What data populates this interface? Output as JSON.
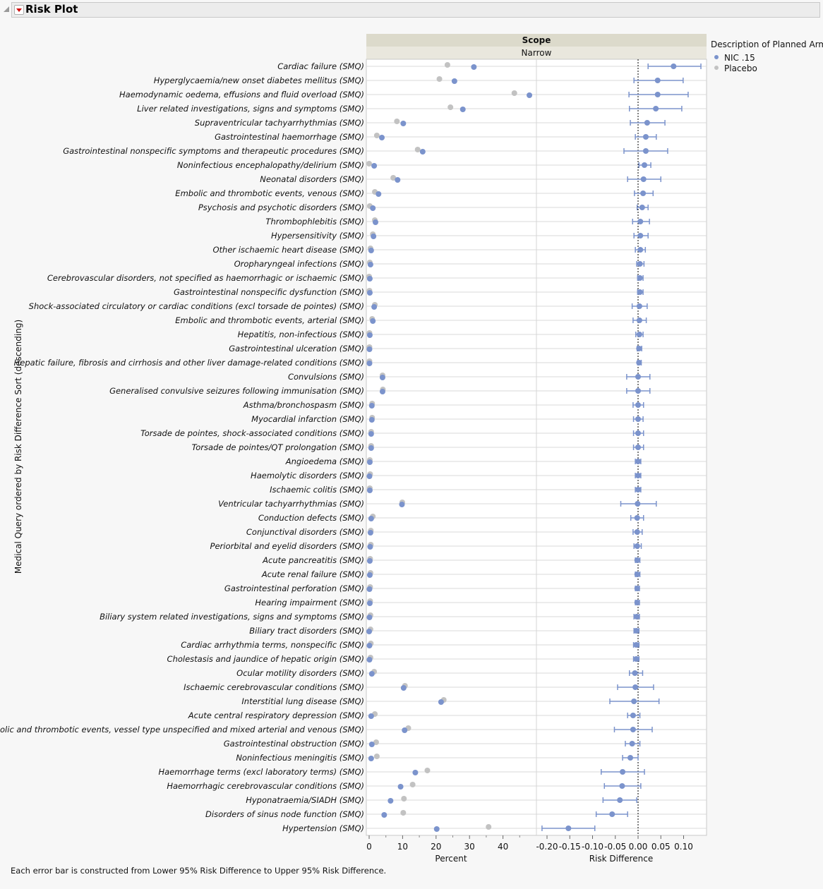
{
  "header": {
    "title": "Risk Plot"
  },
  "footer": "Each error bar is constructed from Lower 95% Risk Difference to Upper 95% Risk Difference.",
  "colors": {
    "nic": "#7b93cc",
    "placebo": "#c2c2c2"
  },
  "chart_data": {
    "type": "scatter",
    "panel_header": "Scope",
    "panel_subheader": "Narrow",
    "ylabel": "Medical Query ordered by Risk Difference Sort (descending)",
    "legend": {
      "title": "Description of Planned Arm",
      "entries": [
        "NIC .15",
        "Placebo"
      ],
      "placement": "right"
    },
    "percent_axis": {
      "label": "Percent",
      "range": [
        0,
        50
      ],
      "ticks": [
        "0",
        "10",
        "20",
        "30",
        "40"
      ],
      "tick_values": [
        0,
        10,
        20,
        30,
        40
      ]
    },
    "rd_axis": {
      "label": "Risk Difference",
      "range": [
        -0.223,
        0.15
      ],
      "ticks": [
        "-0.20",
        "-0.15",
        "-0.10",
        "-0.05",
        "0.00",
        "0.05",
        "0.10"
      ],
      "tick_values": [
        -0.2,
        -0.15,
        -0.1,
        -0.05,
        0,
        0.05,
        0.1
      ],
      "reference_line": 0
    },
    "rows": [
      {
        "label": "Cardiac failure (SMQ)",
        "nic": 31.3,
        "placebo": 23.4,
        "rd": 0.078,
        "lo": 0.022,
        "hi": 0.138
      },
      {
        "label": "Hyperglycaemia/new onset diabetes mellitus (SMQ)",
        "nic": 25.5,
        "placebo": 21.0,
        "rd": 0.043,
        "lo": -0.009,
        "hi": 0.099
      },
      {
        "label": "Haemodynamic oedema, effusions and fluid overload (SMQ)",
        "nic": 47.9,
        "placebo": 43.4,
        "rd": 0.043,
        "lo": -0.02,
        "hi": 0.11
      },
      {
        "label": "Liver related investigations, signs and symptoms (SMQ)",
        "nic": 28.0,
        "placebo": 24.3,
        "rd": 0.039,
        "lo": -0.019,
        "hi": 0.096
      },
      {
        "label": "Supraventricular tachyarrhythmias (SMQ)",
        "nic": 10.2,
        "placebo": 8.3,
        "rd": 0.02,
        "lo": -0.017,
        "hi": 0.059
      },
      {
        "label": "Gastrointestinal haemorrhage (SMQ)",
        "nic": 3.8,
        "placebo": 2.3,
        "rd": 0.017,
        "lo": -0.006,
        "hi": 0.04
      },
      {
        "label": "Gastrointestinal nonspecific symptoms and therapeutic procedures (SMQ)",
        "nic": 16.0,
        "placebo": 14.5,
        "rd": 0.017,
        "lo": -0.031,
        "hi": 0.065
      },
      {
        "label": "Noninfectious encephalopathy/delirium (SMQ)",
        "nic": 1.5,
        "placebo": 0.0,
        "rd": 0.014,
        "lo": 0.002,
        "hi": 0.028
      },
      {
        "label": "Neonatal disorders (SMQ)",
        "nic": 8.5,
        "placebo": 7.2,
        "rd": 0.012,
        "lo": -0.023,
        "hi": 0.05
      },
      {
        "label": "Embolic and thrombotic events, venous (SMQ)",
        "nic": 2.8,
        "placebo": 1.7,
        "rd": 0.011,
        "lo": -0.008,
        "hi": 0.033
      },
      {
        "label": "Psychosis and psychotic disorders (SMQ)",
        "nic": 1.1,
        "placebo": 0.2,
        "rd": 0.009,
        "lo": -0.002,
        "hi": 0.022
      },
      {
        "label": "Thrombophlebitis (SMQ)",
        "nic": 1.9,
        "placebo": 1.7,
        "rd": 0.005,
        "lo": -0.012,
        "hi": 0.025
      },
      {
        "label": "Hypersensitivity (SMQ)",
        "nic": 1.3,
        "placebo": 1.1,
        "rd": 0.005,
        "lo": -0.009,
        "hi": 0.022
      },
      {
        "label": "Other ischaemic heart disease (SMQ)",
        "nic": 0.6,
        "placebo": 0.4,
        "rd": 0.005,
        "lo": -0.006,
        "hi": 0.016
      },
      {
        "label": "Oropharyngeal infections (SMQ)",
        "nic": 0.4,
        "placebo": 0.2,
        "rd": 0.004,
        "lo": -0.003,
        "hi": 0.013
      },
      {
        "label": "Cerebrovascular disorders, not specified as haemorrhagic or ischaemic (SMQ)",
        "nic": 0.2,
        "placebo": 0.0,
        "rd": 0.004,
        "lo": -0.001,
        "hi": 0.011
      },
      {
        "label": "Gastrointestinal nonspecific dysfunction (SMQ)",
        "nic": 0.2,
        "placebo": 0.1,
        "rd": 0.004,
        "lo": -0.001,
        "hi": 0.011
      },
      {
        "label": "Shock-associated circulatory or cardiac conditions (excl torsade de pointes) (SMQ)",
        "nic": 1.5,
        "placebo": 1.7,
        "rd": 0.003,
        "lo": -0.013,
        "hi": 0.02
      },
      {
        "label": "Embolic and thrombotic events, arterial (SMQ)",
        "nic": 1.1,
        "placebo": 0.9,
        "rd": 0.003,
        "lo": -0.011,
        "hi": 0.018
      },
      {
        "label": "Hepatitis, non-infectious (SMQ)",
        "nic": 0.2,
        "placebo": 0.1,
        "rd": 0.003,
        "lo": -0.005,
        "hi": 0.011
      },
      {
        "label": "Gastrointestinal ulceration (SMQ)",
        "nic": 0.1,
        "placebo": 0.1,
        "rd": 0.002,
        "lo": -0.002,
        "hi": 0.008
      },
      {
        "label": "Hepatic failure, fibrosis and cirrhosis and other liver damage-related conditions (SMQ)",
        "nic": 0.1,
        "placebo": 0.1,
        "rd": 0.002,
        "lo": -0.001,
        "hi": 0.007
      },
      {
        "label": "Convulsions (SMQ)",
        "nic": 4.0,
        "placebo": 4.0,
        "rd": 0.0,
        "lo": -0.025,
        "hi": 0.026
      },
      {
        "label": "Generalised convulsive seizures following immunisation (SMQ)",
        "nic": 4.0,
        "placebo": 4.1,
        "rd": 0.0,
        "lo": -0.025,
        "hi": 0.026
      },
      {
        "label": "Asthma/bronchospasm (SMQ)",
        "nic": 0.8,
        "placebo": 0.9,
        "rd": 0.0,
        "lo": -0.011,
        "hi": 0.012
      },
      {
        "label": "Myocardial infarction (SMQ)",
        "nic": 0.8,
        "placebo": 0.9,
        "rd": 0.0,
        "lo": -0.01,
        "hi": 0.011
      },
      {
        "label": "Torsade de pointes, shock-associated conditions (SMQ)",
        "nic": 0.6,
        "placebo": 0.6,
        "rd": 0.0,
        "lo": -0.01,
        "hi": 0.012
      },
      {
        "label": "Torsade de pointes/QT prolongation (SMQ)",
        "nic": 0.6,
        "placebo": 0.6,
        "rd": 0.0,
        "lo": -0.01,
        "hi": 0.012
      },
      {
        "label": "Angioedema (SMQ)",
        "nic": 0.2,
        "placebo": 0.2,
        "rd": 0.0,
        "lo": -0.006,
        "hi": 0.006
      },
      {
        "label": "Haemolytic disorders (SMQ)",
        "nic": 0.1,
        "placebo": 0.3,
        "rd": 0.0,
        "lo": -0.006,
        "hi": 0.006
      },
      {
        "label": "Ischaemic colitis (SMQ)",
        "nic": 0.2,
        "placebo": 0.2,
        "rd": 0.0,
        "lo": -0.006,
        "hi": 0.006
      },
      {
        "label": "Ventricular tachyarrhythmias (SMQ)",
        "nic": 9.8,
        "placebo": 9.9,
        "rd": -0.001,
        "lo": -0.038,
        "hi": 0.04
      },
      {
        "label": "Conduction defects (SMQ)",
        "nic": 0.6,
        "placebo": 1.1,
        "rd": -0.002,
        "lo": -0.016,
        "hi": 0.012
      },
      {
        "label": "Conjunctival disorders (SMQ)",
        "nic": 0.4,
        "placebo": 0.5,
        "rd": -0.002,
        "lo": -0.011,
        "hi": 0.009
      },
      {
        "label": "Periorbital and eyelid disorders (SMQ)",
        "nic": 0.3,
        "placebo": 0.5,
        "rd": -0.002,
        "lo": -0.009,
        "hi": 0.007
      },
      {
        "label": "Acute pancreatitis (SMQ)",
        "nic": 0.2,
        "placebo": 0.3,
        "rd": -0.002,
        "lo": -0.006,
        "hi": 0.004
      },
      {
        "label": "Acute renal failure (SMQ)",
        "nic": 0.2,
        "placebo": 0.4,
        "rd": -0.002,
        "lo": -0.006,
        "hi": 0.004
      },
      {
        "label": "Gastrointestinal perforation (SMQ)",
        "nic": 0.1,
        "placebo": 0.3,
        "rd": -0.002,
        "lo": -0.006,
        "hi": 0.003
      },
      {
        "label": "Hearing impairment (SMQ)",
        "nic": 0.2,
        "placebo": 0.3,
        "rd": -0.002,
        "lo": -0.006,
        "hi": 0.003
      },
      {
        "label": "Biliary system related investigations, signs and symptoms (SMQ)",
        "nic": 0.1,
        "placebo": 0.4,
        "rd": -0.003,
        "lo": -0.009,
        "hi": 0.003
      },
      {
        "label": "Biliary tract disorders (SMQ)",
        "nic": 0.0,
        "placebo": 0.4,
        "rd": -0.004,
        "lo": -0.009,
        "hi": 0.002
      },
      {
        "label": "Cardiac arrhythmia terms, nonspecific (SMQ)",
        "nic": 0.1,
        "placebo": 0.5,
        "rd": -0.004,
        "lo": -0.01,
        "hi": 0.002
      },
      {
        "label": "Cholestasis and jaundice of hepatic origin (SMQ)",
        "nic": 0.1,
        "placebo": 0.4,
        "rd": -0.004,
        "lo": -0.01,
        "hi": 0.002
      },
      {
        "label": "Ocular motility disorders (SMQ)",
        "nic": 0.8,
        "placebo": 1.5,
        "rd": -0.007,
        "lo": -0.019,
        "hi": 0.01
      },
      {
        "label": "Ischaemic cerebrovascular conditions (SMQ)",
        "nic": 10.3,
        "placebo": 10.7,
        "rd": -0.006,
        "lo": -0.045,
        "hi": 0.034
      },
      {
        "label": "Interstitial lung disease (SMQ)",
        "nic": 21.5,
        "placebo": 22.3,
        "rd": -0.009,
        "lo": -0.062,
        "hi": 0.046
      },
      {
        "label": "Acute central respiratory depression (SMQ)",
        "nic": 0.6,
        "placebo": 1.7,
        "rd": -0.011,
        "lo": -0.023,
        "hi": 0.004
      },
      {
        "label": "Embolic and thrombotic events, vessel type unspecified and mixed arterial and venous (SMQ)",
        "nic": 10.6,
        "placebo": 11.7,
        "rd": -0.011,
        "lo": -0.052,
        "hi": 0.031
      },
      {
        "label": "Gastrointestinal obstruction (SMQ)",
        "nic": 0.8,
        "placebo": 2.1,
        "rd": -0.013,
        "lo": -0.028,
        "hi": 0.004
      },
      {
        "label": "Noninfectious meningitis (SMQ)",
        "nic": 0.6,
        "placebo": 2.3,
        "rd": -0.017,
        "lo": -0.034,
        "hi": 0.0
      },
      {
        "label": "Haemorrhage terms (excl laboratory terms) (SMQ)",
        "nic": 13.8,
        "placebo": 17.4,
        "rd": -0.034,
        "lo": -0.081,
        "hi": 0.014
      },
      {
        "label": "Haemorrhagic cerebrovascular conditions (SMQ)",
        "nic": 9.4,
        "placebo": 13.0,
        "rd": -0.035,
        "lo": -0.074,
        "hi": 0.006
      },
      {
        "label": "Hyponatraemia/SIADH (SMQ)",
        "nic": 6.4,
        "placebo": 10.4,
        "rd": -0.04,
        "lo": -0.077,
        "hi": -0.003
      },
      {
        "label": "Disorders of sinus node function (SMQ)",
        "nic": 4.5,
        "placebo": 10.2,
        "rd": -0.057,
        "lo": -0.092,
        "hi": -0.023
      },
      {
        "label": "Hypertension (SMQ)",
        "nic": 20.2,
        "placebo": 35.7,
        "rd": -0.153,
        "lo": -0.211,
        "hi": -0.095
      }
    ]
  }
}
